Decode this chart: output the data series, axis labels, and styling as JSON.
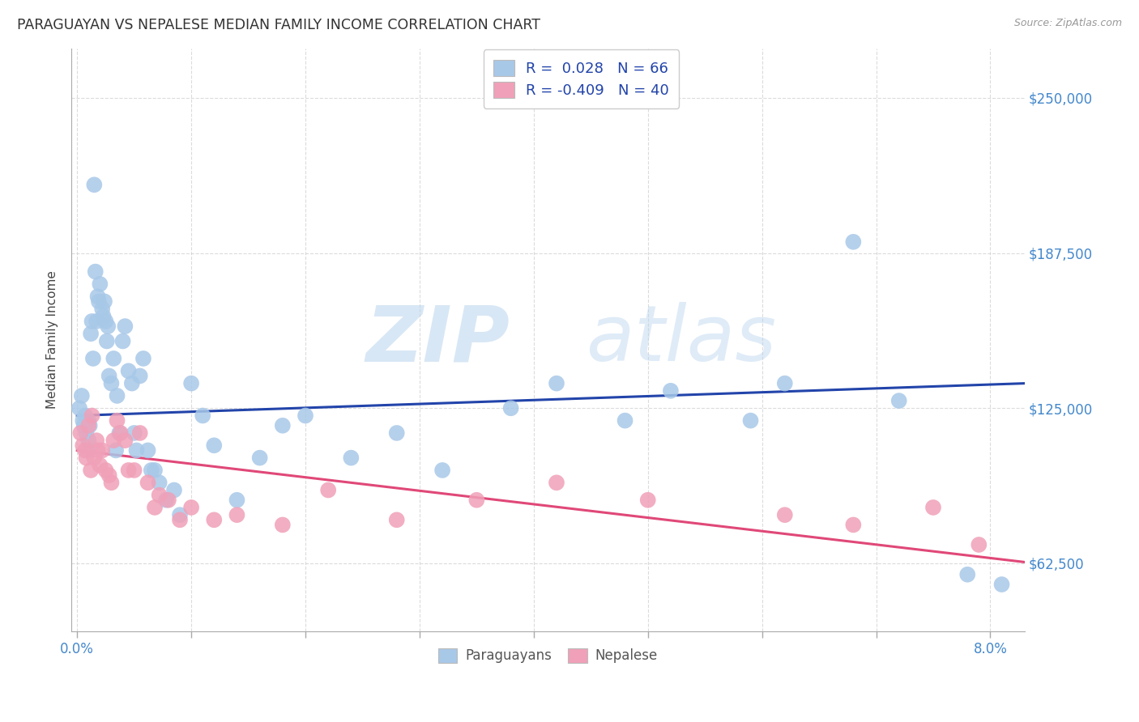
{
  "title": "PARAGUAYAN VS NEPALESE MEDIAN FAMILY INCOME CORRELATION CHART",
  "source": "Source: ZipAtlas.com",
  "ylabel": "Median Family Income",
  "yticks": [
    62500,
    125000,
    187500,
    250000
  ],
  "ytick_labels": [
    "$62,500",
    "$125,000",
    "$187,500",
    "$250,000"
  ],
  "ylim": [
    35000,
    270000
  ],
  "xlim": [
    -0.05,
    8.3
  ],
  "watermark_zip": "ZIP",
  "watermark_atlas": "atlas",
  "paraguayan_color": "#a8c8e8",
  "nepalese_color": "#f0a0b8",
  "paraguayan_line_color": "#2244aa",
  "nepalese_line_color": "#e04878",
  "R_paraguayan": 0.028,
  "N_paraguayan": 66,
  "R_nepalese": -0.409,
  "N_nepalese": 40,
  "par_line_x0": 0.0,
  "par_line_y0": 122000,
  "par_line_x1": 8.3,
  "par_line_y1": 135000,
  "nep_line_x0": 0.0,
  "nep_line_y0": 108000,
  "nep_line_x1": 8.3,
  "nep_line_y1": 63000,
  "paraguayan_x": [
    0.02,
    0.04,
    0.05,
    0.06,
    0.07,
    0.08,
    0.09,
    0.1,
    0.1,
    0.11,
    0.12,
    0.13,
    0.14,
    0.15,
    0.16,
    0.17,
    0.18,
    0.19,
    0.2,
    0.22,
    0.23,
    0.24,
    0.25,
    0.26,
    0.27,
    0.28,
    0.3,
    0.32,
    0.34,
    0.35,
    0.37,
    0.4,
    0.42,
    0.45,
    0.48,
    0.5,
    0.52,
    0.55,
    0.58,
    0.62,
    0.65,
    0.68,
    0.72,
    0.78,
    0.85,
    0.9,
    1.0,
    1.1,
    1.2,
    1.4,
    1.6,
    1.8,
    2.0,
    2.4,
    2.8,
    3.2,
    3.8,
    4.2,
    4.8,
    5.2,
    5.9,
    6.2,
    6.8,
    7.2,
    7.8,
    8.1
  ],
  "paraguayan_y": [
    125000,
    130000,
    120000,
    118000,
    122000,
    115000,
    108000,
    112000,
    120000,
    118000,
    155000,
    160000,
    145000,
    215000,
    180000,
    160000,
    170000,
    168000,
    175000,
    165000,
    162000,
    168000,
    160000,
    152000,
    158000,
    138000,
    135000,
    145000,
    108000,
    130000,
    115000,
    152000,
    158000,
    140000,
    135000,
    115000,
    108000,
    138000,
    145000,
    108000,
    100000,
    100000,
    95000,
    88000,
    92000,
    82000,
    135000,
    122000,
    110000,
    88000,
    105000,
    118000,
    122000,
    105000,
    115000,
    100000,
    125000,
    135000,
    120000,
    132000,
    120000,
    135000,
    192000,
    128000,
    58000,
    54000
  ],
  "nepalese_x": [
    0.03,
    0.05,
    0.07,
    0.08,
    0.1,
    0.12,
    0.13,
    0.15,
    0.17,
    0.18,
    0.2,
    0.22,
    0.25,
    0.28,
    0.3,
    0.32,
    0.35,
    0.38,
    0.42,
    0.45,
    0.5,
    0.55,
    0.62,
    0.68,
    0.72,
    0.8,
    0.9,
    1.0,
    1.2,
    1.4,
    1.8,
    2.2,
    2.8,
    3.5,
    4.2,
    5.0,
    6.2,
    6.8,
    7.5,
    7.9
  ],
  "nepalese_y": [
    115000,
    110000,
    108000,
    105000,
    118000,
    100000,
    122000,
    105000,
    112000,
    108000,
    102000,
    108000,
    100000,
    98000,
    95000,
    112000,
    120000,
    115000,
    112000,
    100000,
    100000,
    115000,
    95000,
    85000,
    90000,
    88000,
    80000,
    85000,
    80000,
    82000,
    78000,
    92000,
    80000,
    88000,
    95000,
    88000,
    82000,
    78000,
    85000,
    70000
  ]
}
